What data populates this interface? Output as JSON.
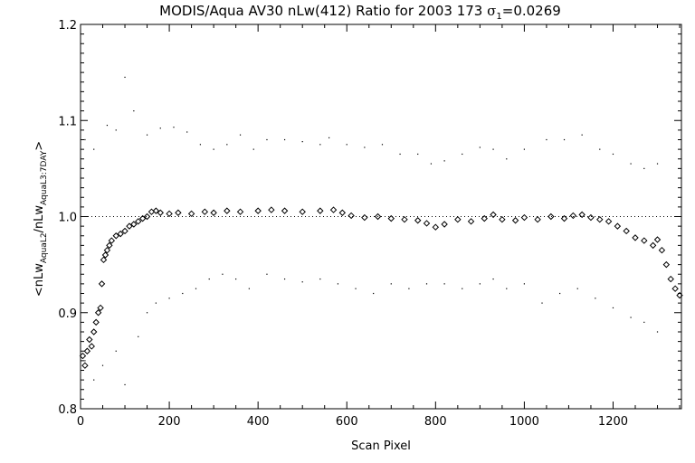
{
  "chart_data": {
    "type": "scatter",
    "title": {
      "prefix": "MODIS/Aqua AV30 nLw(412) Ratio for 2003 173 ",
      "sigma_symbol": "σ",
      "sigma_sub": "1",
      "sigma_value": "=0.0269"
    },
    "xlabel": "Scan Pixel",
    "ylabel": {
      "part1": "<nLw",
      "sub1": "AquaL2",
      "part2": "/nLw",
      "sub2": "AquaL3:7DAY",
      "part3": ">"
    },
    "xlim": [
      0,
      1354
    ],
    "ylim": [
      0.8,
      1.2
    ],
    "x_ticks": [
      0,
      200,
      400,
      600,
      800,
      1000,
      1200
    ],
    "x_tick_labels": [
      "0",
      "200",
      "400",
      "600",
      "800",
      "1000",
      "1200"
    ],
    "y_ticks": [
      0.8,
      0.9,
      1.0,
      1.1,
      1.2
    ],
    "y_tick_labels": [
      "0.8",
      "0.9",
      "1.0",
      "1.1",
      "1.2"
    ],
    "reference_line": {
      "y": 1.0,
      "style": "dotted"
    },
    "series": [
      {
        "marker": "diamond",
        "points": [
          [
            5,
            0.855
          ],
          [
            10,
            0.845
          ],
          [
            15,
            0.86
          ],
          [
            20,
            0.872
          ],
          [
            25,
            0.865
          ],
          [
            30,
            0.88
          ],
          [
            35,
            0.89
          ],
          [
            40,
            0.9
          ],
          [
            45,
            0.905
          ],
          [
            48,
            0.93
          ],
          [
            52,
            0.955
          ],
          [
            56,
            0.96
          ],
          [
            60,
            0.965
          ],
          [
            65,
            0.97
          ],
          [
            70,
            0.975
          ],
          [
            80,
            0.98
          ],
          [
            90,
            0.982
          ],
          [
            100,
            0.985
          ],
          [
            110,
            0.99
          ],
          [
            120,
            0.992
          ],
          [
            130,
            0.995
          ],
          [
            140,
            0.998
          ],
          [
            150,
            1.0
          ],
          [
            160,
            1.005
          ],
          [
            170,
            1.006
          ],
          [
            180,
            1.004
          ],
          [
            200,
            1.003
          ],
          [
            220,
            1.004
          ],
          [
            250,
            1.003
          ],
          [
            280,
            1.005
          ],
          [
            300,
            1.004
          ],
          [
            330,
            1.006
          ],
          [
            360,
            1.005
          ],
          [
            400,
            1.006
          ],
          [
            430,
            1.007
          ],
          [
            460,
            1.006
          ],
          [
            500,
            1.005
          ],
          [
            540,
            1.006
          ],
          [
            570,
            1.007
          ],
          [
            590,
            1.004
          ],
          [
            610,
            1.001
          ],
          [
            640,
            0.999
          ],
          [
            670,
            1.0
          ],
          [
            700,
            0.998
          ],
          [
            730,
            0.997
          ],
          [
            760,
            0.996
          ],
          [
            780,
            0.993
          ],
          [
            800,
            0.989
          ],
          [
            820,
            0.992
          ],
          [
            850,
            0.997
          ],
          [
            880,
            0.995
          ],
          [
            910,
            0.998
          ],
          [
            930,
            1.002
          ],
          [
            950,
            0.997
          ],
          [
            980,
            0.996
          ],
          [
            1000,
            0.999
          ],
          [
            1030,
            0.997
          ],
          [
            1060,
            1.0
          ],
          [
            1090,
            0.998
          ],
          [
            1110,
            1.001
          ],
          [
            1130,
            1.002
          ],
          [
            1150,
            0.999
          ],
          [
            1170,
            0.997
          ],
          [
            1190,
            0.995
          ],
          [
            1210,
            0.99
          ],
          [
            1230,
            0.985
          ],
          [
            1250,
            0.978
          ],
          [
            1270,
            0.975
          ],
          [
            1290,
            0.97
          ],
          [
            1300,
            0.976
          ],
          [
            1310,
            0.965
          ],
          [
            1320,
            0.95
          ],
          [
            1330,
            0.935
          ],
          [
            1340,
            0.925
          ],
          [
            1350,
            0.918
          ]
        ]
      },
      {
        "marker": "dot",
        "points": [
          [
            10,
            1.08
          ],
          [
            30,
            1.07
          ],
          [
            60,
            1.095
          ],
          [
            80,
            1.09
          ],
          [
            100,
            1.145
          ],
          [
            120,
            1.11
          ],
          [
            150,
            1.085
          ],
          [
            180,
            1.092
          ],
          [
            210,
            1.093
          ],
          [
            240,
            1.088
          ],
          [
            270,
            1.075
          ],
          [
            300,
            1.07
          ],
          [
            330,
            1.075
          ],
          [
            360,
            1.085
          ],
          [
            390,
            1.07
          ],
          [
            420,
            1.08
          ],
          [
            460,
            1.08
          ],
          [
            500,
            1.078
          ],
          [
            540,
            1.075
          ],
          [
            560,
            1.082
          ],
          [
            600,
            1.075
          ],
          [
            640,
            1.072
          ],
          [
            680,
            1.075
          ],
          [
            720,
            1.065
          ],
          [
            760,
            1.065
          ],
          [
            790,
            1.055
          ],
          [
            820,
            1.058
          ],
          [
            860,
            1.065
          ],
          [
            900,
            1.072
          ],
          [
            930,
            1.07
          ],
          [
            960,
            1.06
          ],
          [
            1000,
            1.07
          ],
          [
            1050,
            1.08
          ],
          [
            1090,
            1.08
          ],
          [
            1130,
            1.085
          ],
          [
            1170,
            1.07
          ],
          [
            1200,
            1.065
          ],
          [
            1240,
            1.055
          ],
          [
            1270,
            1.05
          ],
          [
            1300,
            1.055
          ]
        ]
      },
      {
        "marker": "dot",
        "points": [
          [
            10,
            0.85
          ],
          [
            30,
            0.83
          ],
          [
            50,
            0.845
          ],
          [
            80,
            0.86
          ],
          [
            100,
            0.825
          ],
          [
            130,
            0.875
          ],
          [
            150,
            0.9
          ],
          [
            170,
            0.91
          ],
          [
            200,
            0.915
          ],
          [
            230,
            0.92
          ],
          [
            260,
            0.925
          ],
          [
            290,
            0.935
          ],
          [
            320,
            0.94
          ],
          [
            350,
            0.935
          ],
          [
            380,
            0.925
          ],
          [
            420,
            0.94
          ],
          [
            460,
            0.935
          ],
          [
            500,
            0.932
          ],
          [
            540,
            0.935
          ],
          [
            580,
            0.93
          ],
          [
            620,
            0.925
          ],
          [
            660,
            0.92
          ],
          [
            700,
            0.93
          ],
          [
            740,
            0.925
          ],
          [
            780,
            0.93
          ],
          [
            820,
            0.93
          ],
          [
            860,
            0.925
          ],
          [
            900,
            0.93
          ],
          [
            930,
            0.935
          ],
          [
            960,
            0.925
          ],
          [
            1000,
            0.93
          ],
          [
            1040,
            0.91
          ],
          [
            1080,
            0.92
          ],
          [
            1120,
            0.925
          ],
          [
            1160,
            0.915
          ],
          [
            1200,
            0.905
          ],
          [
            1240,
            0.895
          ],
          [
            1270,
            0.89
          ],
          [
            1300,
            0.88
          ]
        ]
      }
    ]
  }
}
